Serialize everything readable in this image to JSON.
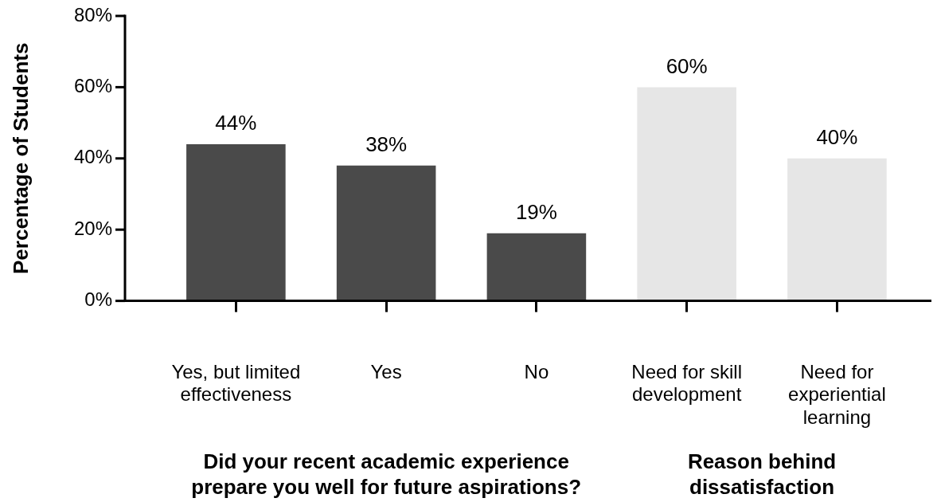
{
  "chart_data": {
    "type": "bar",
    "ylabel": "Percentage of Students",
    "categories": [
      "Yes, but limited effectiveness",
      "Yes",
      "No",
      "Need for skill development",
      "Need for experiential learning"
    ],
    "values": [
      44,
      38,
      19,
      60,
      40
    ],
    "value_labels": [
      "44%",
      "38%",
      "19%",
      "60%",
      "40%"
    ],
    "colors": [
      "#4a4a4a",
      "#4a4a4a",
      "#4a4a4a",
      "#e6e6e6",
      "#e6e6e6"
    ],
    "ylim": [
      0,
      80
    ],
    "yticks": [
      {
        "value": 0,
        "label": "0%"
      },
      {
        "value": 20,
        "label": "20%"
      },
      {
        "value": 40,
        "label": "40%"
      },
      {
        "value": 60,
        "label": "60%"
      },
      {
        "value": 80,
        "label": "80%"
      }
    ],
    "grid": false,
    "legend": false,
    "annotations": [
      "Did your recent academic experience prepare you well for future aspirations?",
      "Reason behind dissatisfaction"
    ]
  }
}
